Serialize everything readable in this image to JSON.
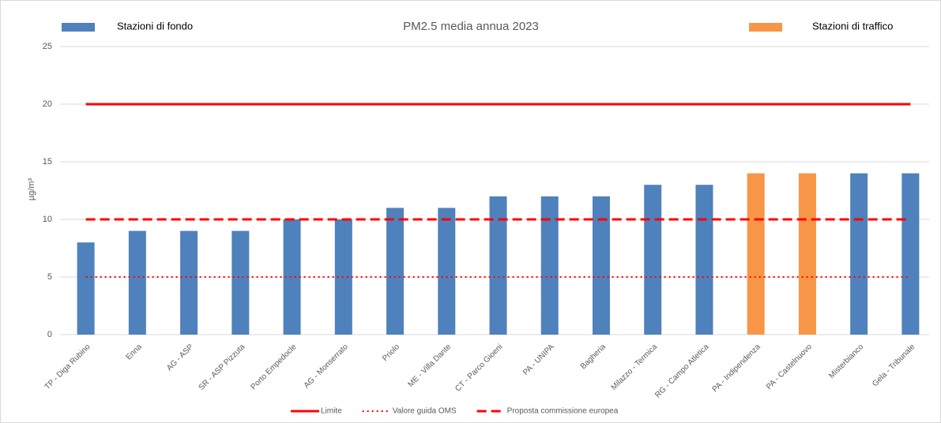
{
  "chart_data": {
    "type": "bar",
    "title": "PM2.5 media annua 2023",
    "ylabel": "µg/m³",
    "categories": [
      "TP - Diga Rubino",
      "Enna",
      "AG - ASP",
      "SR - ASP Pizzuta",
      "Porto Empedocle",
      "AG - Monserrato",
      "Priolo",
      "ME - Villa Dante",
      "CT - Parco Gioeni",
      "PA - UNIPA",
      "Bagheria",
      "Milazzo - Termica",
      "RG - Campo Atletica",
      "PA - Indipendenza",
      "PA - Castelnuovo",
      "Misterbianco",
      "Gela - Tribunale"
    ],
    "series": [
      {
        "name": "Stazioni di fondo",
        "color": "#4f81bd",
        "values": [
          8,
          9,
          9,
          9,
          10,
          10,
          11,
          11,
          12,
          12,
          12,
          13,
          13,
          null,
          null,
          14,
          14
        ]
      },
      {
        "name": "Stazioni di traffico",
        "color": "#f79646",
        "values": [
          null,
          null,
          null,
          null,
          null,
          null,
          null,
          null,
          null,
          null,
          null,
          null,
          null,
          14,
          14,
          null,
          null
        ]
      }
    ],
    "reference_lines": [
      {
        "name": "Limite",
        "value": 20,
        "color": "#ff0000",
        "style": "solid"
      },
      {
        "name": "Valore guida OMS",
        "value": 5,
        "color": "#ff0000",
        "style": "dotted"
      },
      {
        "name": "Proposta commissione europea",
        "value": 10,
        "color": "#ff0000",
        "style": "dashed"
      }
    ],
    "ylim": [
      0,
      25
    ],
    "yticks": [
      0,
      5,
      10,
      15,
      20,
      25
    ],
    "grid": true
  }
}
